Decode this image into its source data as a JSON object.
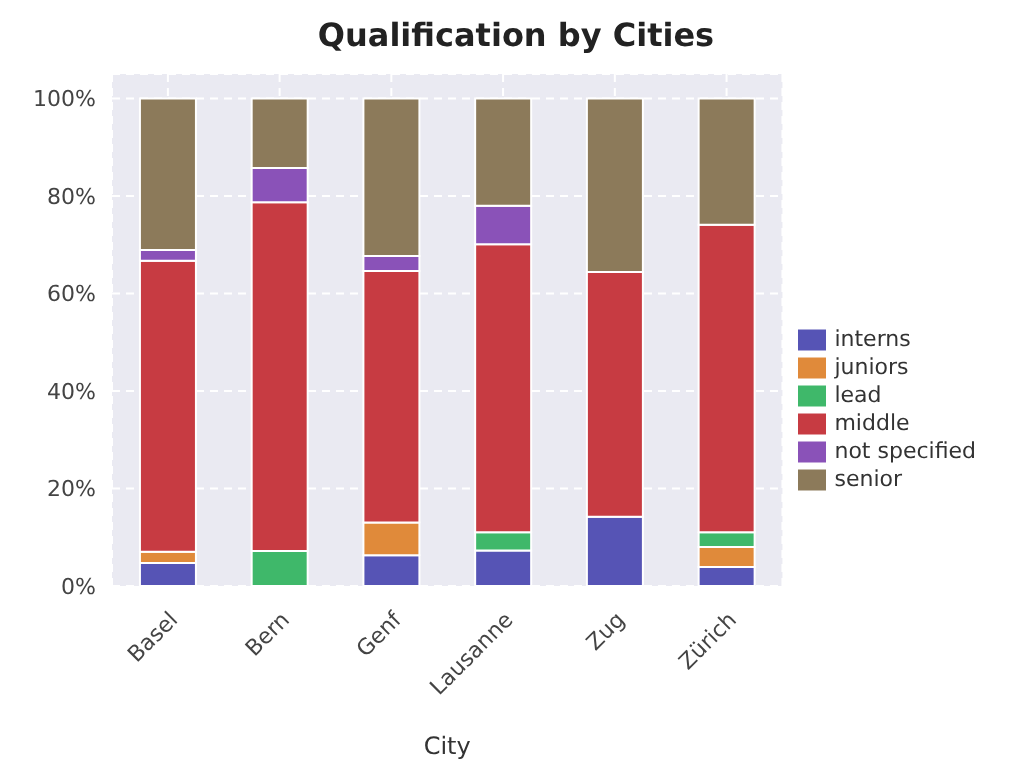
{
  "chart_data": {
    "type": "bar",
    "title": "Qualification by Cities",
    "xlabel": "City",
    "stacked": true,
    "categories": [
      "Basel",
      "Bern",
      "Genf",
      "Lausanne",
      "Zug",
      "Zürich"
    ],
    "series": [
      {
        "name": "interns",
        "color": "#5654b5",
        "values": [
          4.7,
          0,
          6.3,
          7.3,
          14.2,
          3.9
        ]
      },
      {
        "name": "juniors",
        "color": "#e08a3a",
        "values": [
          2.3,
          0,
          6.7,
          0,
          0,
          4.1
        ]
      },
      {
        "name": "lead",
        "color": "#3fb86a",
        "values": [
          0,
          7.2,
          0,
          3.7,
          0,
          3.0
        ]
      },
      {
        "name": "middle",
        "color": "#c73b42",
        "values": [
          59.7,
          71.5,
          51.6,
          59.1,
          50.2,
          63.1
        ]
      },
      {
        "name": "not specified",
        "color": "#8a52b8",
        "values": [
          2.2,
          7.0,
          3.1,
          7.9,
          0,
          0
        ]
      },
      {
        "name": "senior",
        "color": "#8c7a5a",
        "values": [
          31.1,
          14.3,
          32.3,
          22.0,
          35.6,
          25.9
        ]
      }
    ],
    "ylim": [
      0,
      105
    ],
    "yticks": [
      {
        "value": 0,
        "label": "0%"
      },
      {
        "value": 20,
        "label": "20%"
      },
      {
        "value": 40,
        "label": "40%"
      },
      {
        "value": 60,
        "label": "60%"
      },
      {
        "value": 80,
        "label": "80%"
      },
      {
        "value": 100,
        "label": "100%"
      }
    ],
    "grid": true,
    "legend": "right"
  }
}
